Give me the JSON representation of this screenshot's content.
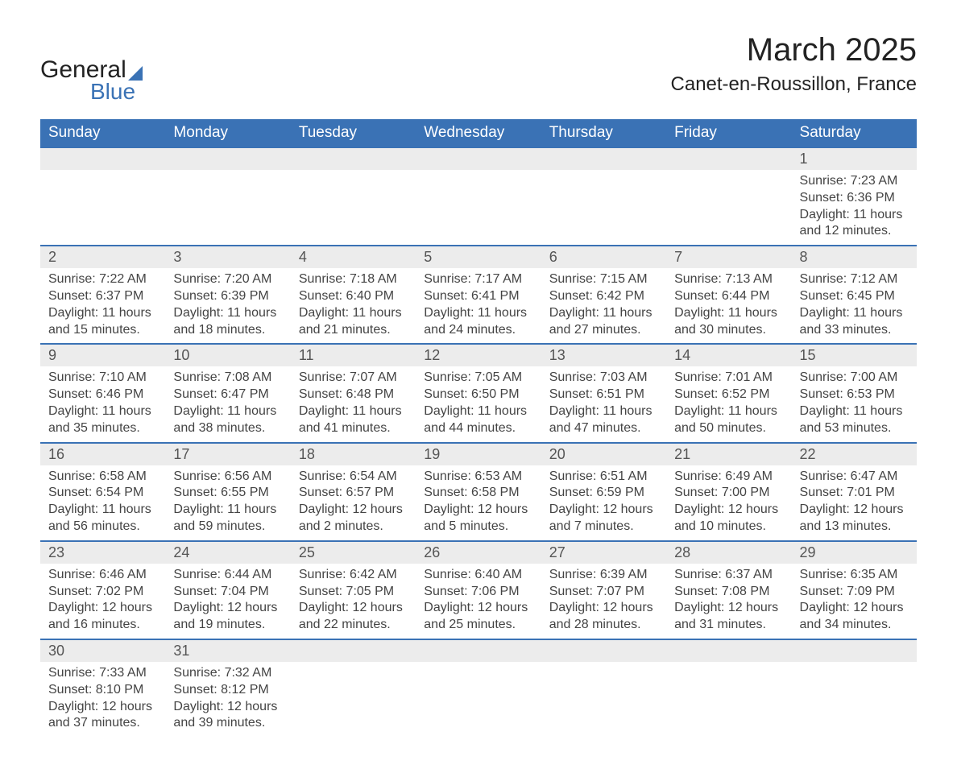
{
  "logo": {
    "word1": "General",
    "word2": "Blue"
  },
  "title": {
    "month": "March 2025",
    "location": "Canet-en-Roussillon, France"
  },
  "header_bg": "#3a72b5",
  "header_text": "#ffffff",
  "daynum_bg": "#ececec",
  "row_divider": "#3a72b5",
  "body_text": "#444444",
  "columns": [
    "Sunday",
    "Monday",
    "Tuesday",
    "Wednesday",
    "Thursday",
    "Friday",
    "Saturday"
  ],
  "weeks": [
    [
      null,
      null,
      null,
      null,
      null,
      null,
      {
        "n": "1",
        "sunrise": "7:23 AM",
        "sunset": "6:36 PM",
        "dl1": "11 hours",
        "dl2": "and 12 minutes."
      }
    ],
    [
      {
        "n": "2",
        "sunrise": "7:22 AM",
        "sunset": "6:37 PM",
        "dl1": "11 hours",
        "dl2": "and 15 minutes."
      },
      {
        "n": "3",
        "sunrise": "7:20 AM",
        "sunset": "6:39 PM",
        "dl1": "11 hours",
        "dl2": "and 18 minutes."
      },
      {
        "n": "4",
        "sunrise": "7:18 AM",
        "sunset": "6:40 PM",
        "dl1": "11 hours",
        "dl2": "and 21 minutes."
      },
      {
        "n": "5",
        "sunrise": "7:17 AM",
        "sunset": "6:41 PM",
        "dl1": "11 hours",
        "dl2": "and 24 minutes."
      },
      {
        "n": "6",
        "sunrise": "7:15 AM",
        "sunset": "6:42 PM",
        "dl1": "11 hours",
        "dl2": "and 27 minutes."
      },
      {
        "n": "7",
        "sunrise": "7:13 AM",
        "sunset": "6:44 PM",
        "dl1": "11 hours",
        "dl2": "and 30 minutes."
      },
      {
        "n": "8",
        "sunrise": "7:12 AM",
        "sunset": "6:45 PM",
        "dl1": "11 hours",
        "dl2": "and 33 minutes."
      }
    ],
    [
      {
        "n": "9",
        "sunrise": "7:10 AM",
        "sunset": "6:46 PM",
        "dl1": "11 hours",
        "dl2": "and 35 minutes."
      },
      {
        "n": "10",
        "sunrise": "7:08 AM",
        "sunset": "6:47 PM",
        "dl1": "11 hours",
        "dl2": "and 38 minutes."
      },
      {
        "n": "11",
        "sunrise": "7:07 AM",
        "sunset": "6:48 PM",
        "dl1": "11 hours",
        "dl2": "and 41 minutes."
      },
      {
        "n": "12",
        "sunrise": "7:05 AM",
        "sunset": "6:50 PM",
        "dl1": "11 hours",
        "dl2": "and 44 minutes."
      },
      {
        "n": "13",
        "sunrise": "7:03 AM",
        "sunset": "6:51 PM",
        "dl1": "11 hours",
        "dl2": "and 47 minutes."
      },
      {
        "n": "14",
        "sunrise": "7:01 AM",
        "sunset": "6:52 PM",
        "dl1": "11 hours",
        "dl2": "and 50 minutes."
      },
      {
        "n": "15",
        "sunrise": "7:00 AM",
        "sunset": "6:53 PM",
        "dl1": "11 hours",
        "dl2": "and 53 minutes."
      }
    ],
    [
      {
        "n": "16",
        "sunrise": "6:58 AM",
        "sunset": "6:54 PM",
        "dl1": "11 hours",
        "dl2": "and 56 minutes."
      },
      {
        "n": "17",
        "sunrise": "6:56 AM",
        "sunset": "6:55 PM",
        "dl1": "11 hours",
        "dl2": "and 59 minutes."
      },
      {
        "n": "18",
        "sunrise": "6:54 AM",
        "sunset": "6:57 PM",
        "dl1": "12 hours",
        "dl2": "and 2 minutes."
      },
      {
        "n": "19",
        "sunrise": "6:53 AM",
        "sunset": "6:58 PM",
        "dl1": "12 hours",
        "dl2": "and 5 minutes."
      },
      {
        "n": "20",
        "sunrise": "6:51 AM",
        "sunset": "6:59 PM",
        "dl1": "12 hours",
        "dl2": "and 7 minutes."
      },
      {
        "n": "21",
        "sunrise": "6:49 AM",
        "sunset": "7:00 PM",
        "dl1": "12 hours",
        "dl2": "and 10 minutes."
      },
      {
        "n": "22",
        "sunrise": "6:47 AM",
        "sunset": "7:01 PM",
        "dl1": "12 hours",
        "dl2": "and 13 minutes."
      }
    ],
    [
      {
        "n": "23",
        "sunrise": "6:46 AM",
        "sunset": "7:02 PM",
        "dl1": "12 hours",
        "dl2": "and 16 minutes."
      },
      {
        "n": "24",
        "sunrise": "6:44 AM",
        "sunset": "7:04 PM",
        "dl1": "12 hours",
        "dl2": "and 19 minutes."
      },
      {
        "n": "25",
        "sunrise": "6:42 AM",
        "sunset": "7:05 PM",
        "dl1": "12 hours",
        "dl2": "and 22 minutes."
      },
      {
        "n": "26",
        "sunrise": "6:40 AM",
        "sunset": "7:06 PM",
        "dl1": "12 hours",
        "dl2": "and 25 minutes."
      },
      {
        "n": "27",
        "sunrise": "6:39 AM",
        "sunset": "7:07 PM",
        "dl1": "12 hours",
        "dl2": "and 28 minutes."
      },
      {
        "n": "28",
        "sunrise": "6:37 AM",
        "sunset": "7:08 PM",
        "dl1": "12 hours",
        "dl2": "and 31 minutes."
      },
      {
        "n": "29",
        "sunrise": "6:35 AM",
        "sunset": "7:09 PM",
        "dl1": "12 hours",
        "dl2": "and 34 minutes."
      }
    ],
    [
      {
        "n": "30",
        "sunrise": "7:33 AM",
        "sunset": "8:10 PM",
        "dl1": "12 hours",
        "dl2": "and 37 minutes."
      },
      {
        "n": "31",
        "sunrise": "7:32 AM",
        "sunset": "8:12 PM",
        "dl1": "12 hours",
        "dl2": "and 39 minutes."
      },
      null,
      null,
      null,
      null,
      null
    ]
  ],
  "labels": {
    "sunrise": "Sunrise: ",
    "sunset": "Sunset: ",
    "daylight": "Daylight: "
  }
}
